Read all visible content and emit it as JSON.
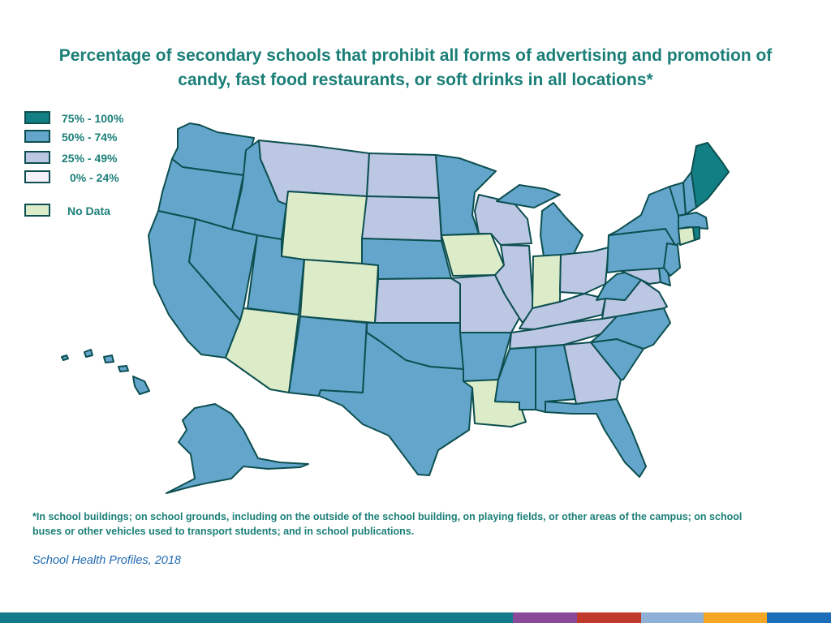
{
  "title": "Percentage of secondary schools that prohibit all forms of advertising and promotion of candy, fast food restaurants, or soft drinks in all locations*",
  "legend": {
    "items": [
      {
        "key": "q4",
        "label": "75% - 100%",
        "color": "#117f84"
      },
      {
        "key": "q3",
        "label": "50% - 74%",
        "color": "#64a6cb"
      },
      {
        "key": "q2",
        "label": "25% - 49%",
        "color": "#bcc7e4"
      },
      {
        "key": "q1",
        "label": "0% - 24%",
        "color": "#f6f0f8"
      },
      {
        "key": "nd",
        "label": "No Data",
        "color": "#ddecc8"
      }
    ]
  },
  "map": {
    "states": {
      "WA": "q3",
      "OR": "q3",
      "CA": "q3",
      "ID": "q3",
      "NV": "q3",
      "UT": "q3",
      "AZ": "nd",
      "MT": "q2",
      "WY": "nd",
      "CO": "nd",
      "NM": "q3",
      "ND": "q2",
      "SD": "q2",
      "NE": "q3",
      "KS": "q2",
      "OK": "q3",
      "TX": "q3",
      "MN": "q3",
      "IA": "nd",
      "MO": "q2",
      "AR": "q3",
      "LA": "nd",
      "WI": "q2",
      "IL": "q2",
      "MI": "q3",
      "IN": "nd",
      "OH": "q2",
      "KY": "q2",
      "TN": "q2",
      "MS": "q3",
      "AL": "q3",
      "GA": "q2",
      "FL": "q3",
      "SC": "q3",
      "NC": "q3",
      "VA": "q2",
      "WV": "q3",
      "PA": "q3",
      "NY": "q3",
      "VT": "q3",
      "NH": "q3",
      "ME": "q4",
      "MA": "q3",
      "RI": "q4",
      "CT": "nd",
      "NJ": "q3",
      "DE": "q3",
      "MD": "q2",
      "AK": "q3",
      "HI": "q3"
    }
  },
  "footnote": "*In school buildings; on school grounds, including on the outside of the school building, on playing fields, or other areas of the campus; on school buses or other vehicles used to transport students; and in school publications.",
  "source": "School Health Profiles, 2018",
  "bottom_bar_colors": [
    "#137a8a",
    "#8a4a9a",
    "#c0392b",
    "#8fb0d6",
    "#f5a623",
    "#1b6fb8"
  ]
}
